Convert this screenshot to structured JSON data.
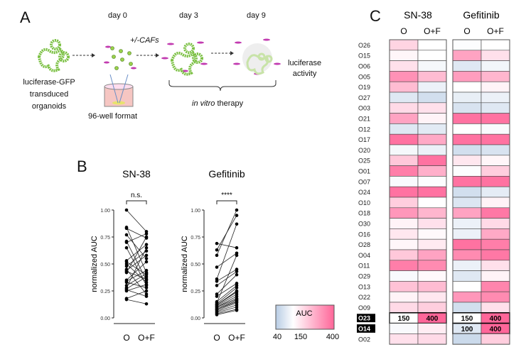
{
  "panel_a": {
    "letter": "A",
    "day0": "day 0",
    "day3": "day 3",
    "day9": "day 9",
    "cafs": "+/-CAFs",
    "organoids_label": [
      "luciferase-GFP",
      "transduced",
      "organoids"
    ],
    "plate_label": "96-well format",
    "therapy_label_italic": "in vitro",
    "therapy_label_rest": " therapy",
    "readout_label": [
      "luciferase",
      "activity"
    ]
  },
  "panel_b": {
    "letter": "B",
    "chart_data": [
      {
        "type": "line",
        "title": "SN-38",
        "ylabel": "normalized AUC",
        "categories": [
          "O",
          "O+F"
        ],
        "ylim": [
          0,
          1
        ],
        "yticks": [
          "0.00",
          "0.25",
          "0.50",
          "0.75",
          "1.00"
        ],
        "significance": "n.s.",
        "pairs": [
          [
            1.0,
            0.8
          ],
          [
            0.84,
            0.42
          ],
          [
            0.83,
            0.74
          ],
          [
            0.77,
            0.55
          ],
          [
            0.71,
            0.35
          ],
          [
            0.7,
            0.78
          ],
          [
            0.65,
            0.3
          ],
          [
            0.53,
            0.68
          ],
          [
            0.52,
            0.4
          ],
          [
            0.5,
            0.33
          ],
          [
            0.48,
            0.62
          ],
          [
            0.45,
            0.22
          ],
          [
            0.44,
            0.58
          ],
          [
            0.43,
            0.36
          ],
          [
            0.42,
            0.75
          ],
          [
            0.35,
            0.52
          ],
          [
            0.34,
            0.44
          ],
          [
            0.33,
            0.28
          ],
          [
            0.3,
            0.41
          ],
          [
            0.28,
            0.65
          ],
          [
            0.27,
            0.38
          ],
          [
            0.26,
            0.2
          ],
          [
            0.25,
            0.31
          ],
          [
            0.18,
            0.25
          ],
          [
            0.17,
            0.13
          ]
        ]
      },
      {
        "type": "line",
        "title": "Gefitinib",
        "ylabel": "normalized AUC",
        "categories": [
          "O",
          "O+F"
        ],
        "ylim": [
          0,
          1
        ],
        "yticks": [
          "0.00",
          "0.25",
          "0.50",
          "0.75",
          "1.00"
        ],
        "significance": "****",
        "pairs": [
          [
            0.69,
            0.65
          ],
          [
            0.63,
            0.95
          ],
          [
            0.58,
            1.0
          ],
          [
            0.47,
            0.6
          ],
          [
            0.36,
            0.87
          ],
          [
            0.34,
            0.45
          ],
          [
            0.3,
            0.43
          ],
          [
            0.22,
            0.4
          ],
          [
            0.2,
            0.32
          ],
          [
            0.15,
            0.3
          ],
          [
            0.14,
            0.58
          ],
          [
            0.13,
            0.28
          ],
          [
            0.12,
            0.25
          ],
          [
            0.12,
            0.24
          ],
          [
            0.11,
            0.22
          ],
          [
            0.1,
            0.2
          ],
          [
            0.1,
            0.18
          ],
          [
            0.09,
            0.17
          ],
          [
            0.08,
            0.16
          ],
          [
            0.08,
            0.15
          ],
          [
            0.07,
            0.14
          ],
          [
            0.06,
            0.12
          ],
          [
            0.05,
            0.1
          ],
          [
            0.04,
            0.08
          ],
          [
            0.03,
            0.07
          ]
        ]
      }
    ],
    "legend": {
      "title": "AUC",
      "ticks": [
        "40",
        "150",
        "400"
      ],
      "min": 40,
      "mid": 150,
      "max": 400,
      "low_color": "#b8cce4",
      "mid_color": "#ffffff",
      "high_color": "#ff6699"
    }
  },
  "panel_c": {
    "letter": "C",
    "chart_data": {
      "type": "heatmap",
      "groups": [
        "SN-38",
        "Gefitinib"
      ],
      "columns": [
        "O",
        "O+F",
        "O",
        "O+F"
      ],
      "rows": [
        "O26",
        "O15",
        "O06",
        "O05",
        "O19",
        "O27",
        "O03",
        "O21",
        "O12",
        "O17",
        "O20",
        "O25",
        "O01",
        "O07",
        "O24",
        "O10",
        "O18",
        "O30",
        "O16",
        "O28",
        "O04",
        "O11",
        "O29",
        "O13",
        "O22",
        "O09",
        "O23",
        "O14",
        "O02"
      ],
      "highlighted_rows": [
        "O23",
        "O14"
      ],
      "values": [
        [
          220,
          150,
          145,
          150
        ],
        [
          165,
          150,
          300,
          200
        ],
        [
          200,
          135,
          100,
          130
        ],
        [
          330,
          260,
          310,
          270
        ],
        [
          260,
          120,
          150,
          170
        ],
        [
          100,
          80,
          115,
          120
        ],
        [
          210,
          200,
          90,
          100
        ],
        [
          300,
          170,
          380,
          380
        ],
        [
          100,
          105,
          150,
          140
        ],
        [
          380,
          290,
          380,
          380
        ],
        [
          135,
          120,
          80,
          90
        ],
        [
          240,
          380,
          190,
          165
        ],
        [
          360,
          280,
          145,
          230
        ],
        [
          140,
          145,
          380,
          380
        ],
        [
          380,
          380,
          80,
          110
        ],
        [
          230,
          150,
          95,
          170
        ],
        [
          320,
          270,
          300,
          370
        ],
        [
          170,
          200,
          120,
          210
        ],
        [
          190,
          160,
          120,
          290
        ],
        [
          165,
          185,
          380,
          360
        ],
        [
          240,
          300,
          340,
          370
        ],
        [
          360,
          340,
          120,
          200
        ],
        [
          140,
          160,
          100,
          170
        ],
        [
          250,
          260,
          150,
          350
        ],
        [
          170,
          190,
          320,
          340
        ],
        [
          210,
          230,
          80,
          200
        ],
        [
          150,
          400,
          150,
          400
        ],
        [
          140,
          180,
          100,
          400
        ],
        [
          200,
          210,
          70,
          230
        ]
      ],
      "cell_labels": {
        "O23": [
          "150",
          "400",
          "150",
          "400"
        ],
        "O14": [
          "",
          "",
          "100",
          "400"
        ]
      }
    }
  }
}
